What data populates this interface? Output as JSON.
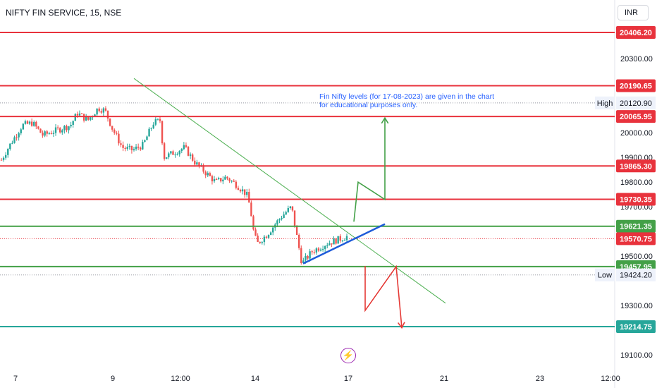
{
  "header": {
    "symbol": "NIFTY FIN SERVICE, 15, NSE",
    "currency": "INR"
  },
  "chart_data": {
    "type": "candlestick",
    "y_range": [
      19060,
      20490
    ],
    "y_ticks": [
      "20300.00",
      "20000.00",
      "19900.00",
      "19800.00",
      "19700.00",
      "19500.00",
      "19300.00",
      "19100.00"
    ],
    "x_ticks": [
      "7",
      "9",
      "12:00",
      "14",
      "17",
      "21",
      "23",
      "12:00"
    ],
    "annotation": "Fin Nifty levels (for 17-08-2023) are given in the chart for educational purposes only.",
    "high": {
      "label": "High",
      "value": 20120.9,
      "text": "20120.90"
    },
    "low": {
      "label": "Low",
      "value": 19424.2,
      "text": "19424.20"
    },
    "levels": [
      {
        "value": 20406.2,
        "text": "20406.20",
        "color": "#e8323c"
      },
      {
        "value": 20190.65,
        "text": "20190.65",
        "color": "#e8323c"
      },
      {
        "value": 20065.95,
        "text": "20065.95",
        "color": "#e8323c"
      },
      {
        "value": 19865.3,
        "text": "19865.30",
        "color": "#e8323c"
      },
      {
        "value": 19730.35,
        "text": "19730.35",
        "color": "#e8323c"
      },
      {
        "value": 19621.35,
        "text": "19621.35",
        "color": "#43a047"
      },
      {
        "value": 19457.95,
        "text": "19457.95",
        "color": "#43a047"
      },
      {
        "value": 19214.75,
        "text": "19214.75",
        "color": "#26a69a"
      }
    ],
    "last_price": {
      "value": 19570.75,
      "text": "19570.75",
      "color": "#e8323c"
    },
    "close_path": [
      [
        0,
        19890
      ],
      [
        0.01,
        19940
      ],
      [
        0.03,
        20030
      ],
      [
        0.045,
        20040
      ],
      [
        0.06,
        19990
      ],
      [
        0.08,
        20010
      ],
      [
        0.1,
        20030
      ],
      [
        0.11,
        20080
      ],
      [
        0.125,
        20050
      ],
      [
        0.14,
        20100
      ],
      [
        0.15,
        20090
      ],
      [
        0.16,
        20020
      ],
      [
        0.175,
        19940
      ],
      [
        0.19,
        19930
      ],
      [
        0.205,
        19950
      ],
      [
        0.22,
        20040
      ],
      [
        0.23,
        20050
      ],
      [
        0.235,
        19900
      ],
      [
        0.25,
        19920
      ],
      [
        0.265,
        19940
      ],
      [
        0.28,
        19880
      ],
      [
        0.295,
        19840
      ],
      [
        0.31,
        19800
      ],
      [
        0.325,
        19820
      ],
      [
        0.34,
        19790
      ],
      [
        0.355,
        19750
      ],
      [
        0.36,
        19700
      ],
      [
        0.365,
        19600
      ],
      [
        0.37,
        19550
      ],
      [
        0.385,
        19590
      ],
      [
        0.405,
        19660
      ],
      [
        0.42,
        19700
      ],
      [
        0.425,
        19620
      ],
      [
        0.435,
        19470
      ],
      [
        0.45,
        19520
      ],
      [
        0.47,
        19550
      ],
      [
        0.49,
        19570
      ],
      [
        0.5,
        19580
      ]
    ],
    "series": [
      {
        "name": "Resistance trendline",
        "color": "#4caf50",
        "from": [
          190,
          20220
        ],
        "to": [
          632,
          19310
        ]
      },
      {
        "name": "Support trendline",
        "color": "#1e5bd9",
        "from": [
          430,
          19470
        ],
        "to": [
          546,
          19630
        ]
      },
      {
        "name": "Bullish projection",
        "color": "#43a047",
        "path": [
          [
            502,
            19640
          ],
          [
            508,
            19800
          ],
          [
            546,
            19730
          ],
          [
            546,
            20060
          ]
        ]
      },
      {
        "name": "Bearish projection",
        "color": "#e53935",
        "path": [
          [
            518,
            19460
          ],
          [
            518,
            19280
          ],
          [
            562,
            19458
          ],
          [
            570,
            19210
          ]
        ]
      }
    ]
  }
}
